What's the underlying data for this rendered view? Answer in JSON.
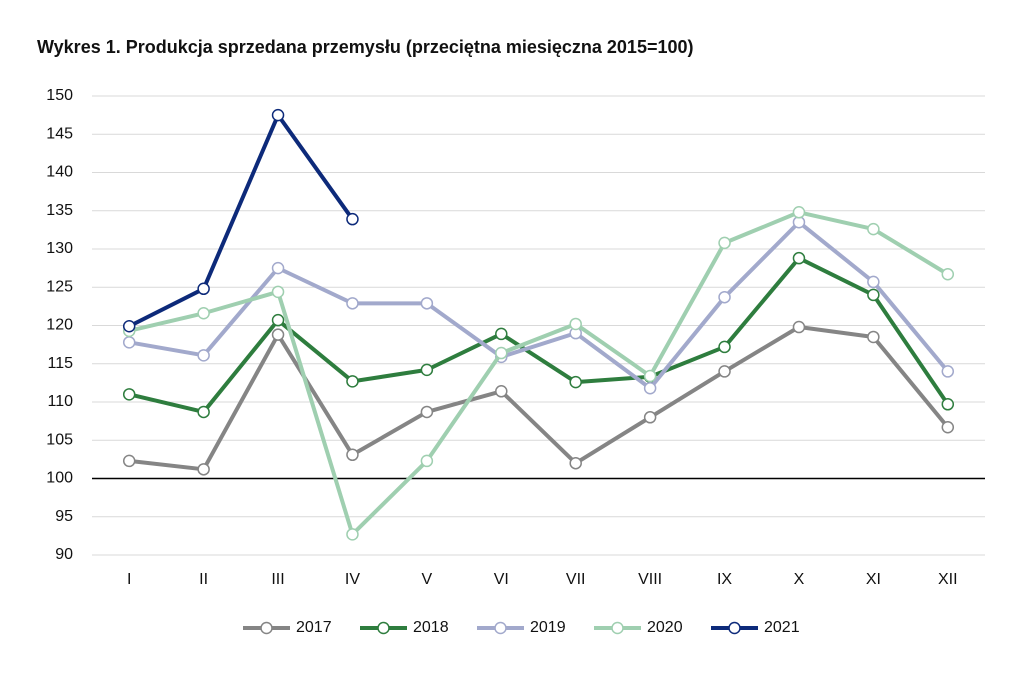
{
  "chart_data": {
    "type": "line",
    "title": "Wykres 1. Produkcja sprzedana przemysłu (przeciętna miesięczna 2015=100)",
    "categories": [
      "I",
      "II",
      "III",
      "IV",
      "V",
      "VI",
      "VII",
      "VIII",
      "IX",
      "X",
      "XI",
      "XII"
    ],
    "series": [
      {
        "name": "2017",
        "color": "#858585",
        "values": [
          102.3,
          101.2,
          118.8,
          103.1,
          108.7,
          111.4,
          102.0,
          108.0,
          114.0,
          119.8,
          118.5,
          106.7
        ]
      },
      {
        "name": "2018",
        "color": "#2e7d3e",
        "values": [
          111.0,
          108.7,
          120.7,
          112.7,
          114.2,
          118.9,
          112.6,
          113.3,
          117.2,
          128.8,
          124.0,
          109.7
        ]
      },
      {
        "name": "2019",
        "color": "#a2a9cc",
        "values": [
          117.8,
          116.1,
          127.5,
          122.9,
          122.9,
          115.9,
          119.0,
          111.8,
          123.7,
          133.5,
          125.7,
          114.0
        ]
      },
      {
        "name": "2020",
        "color": "#9fcfb0",
        "values": [
          119.3,
          121.6,
          124.4,
          92.7,
          102.3,
          116.4,
          120.2,
          113.4,
          130.8,
          134.8,
          132.6,
          126.7
        ]
      },
      {
        "name": "2021",
        "color": "#0d2a7a",
        "values": [
          119.9,
          124.8,
          147.5,
          133.9,
          null,
          null,
          null,
          null,
          null,
          null,
          null,
          null
        ]
      }
    ],
    "ylim": [
      90,
      150
    ],
    "yticks": [
      90,
      95,
      100,
      105,
      110,
      115,
      120,
      125,
      130,
      135,
      140,
      145,
      150
    ],
    "grid": true,
    "baseline": 100,
    "legend": "bottom"
  }
}
